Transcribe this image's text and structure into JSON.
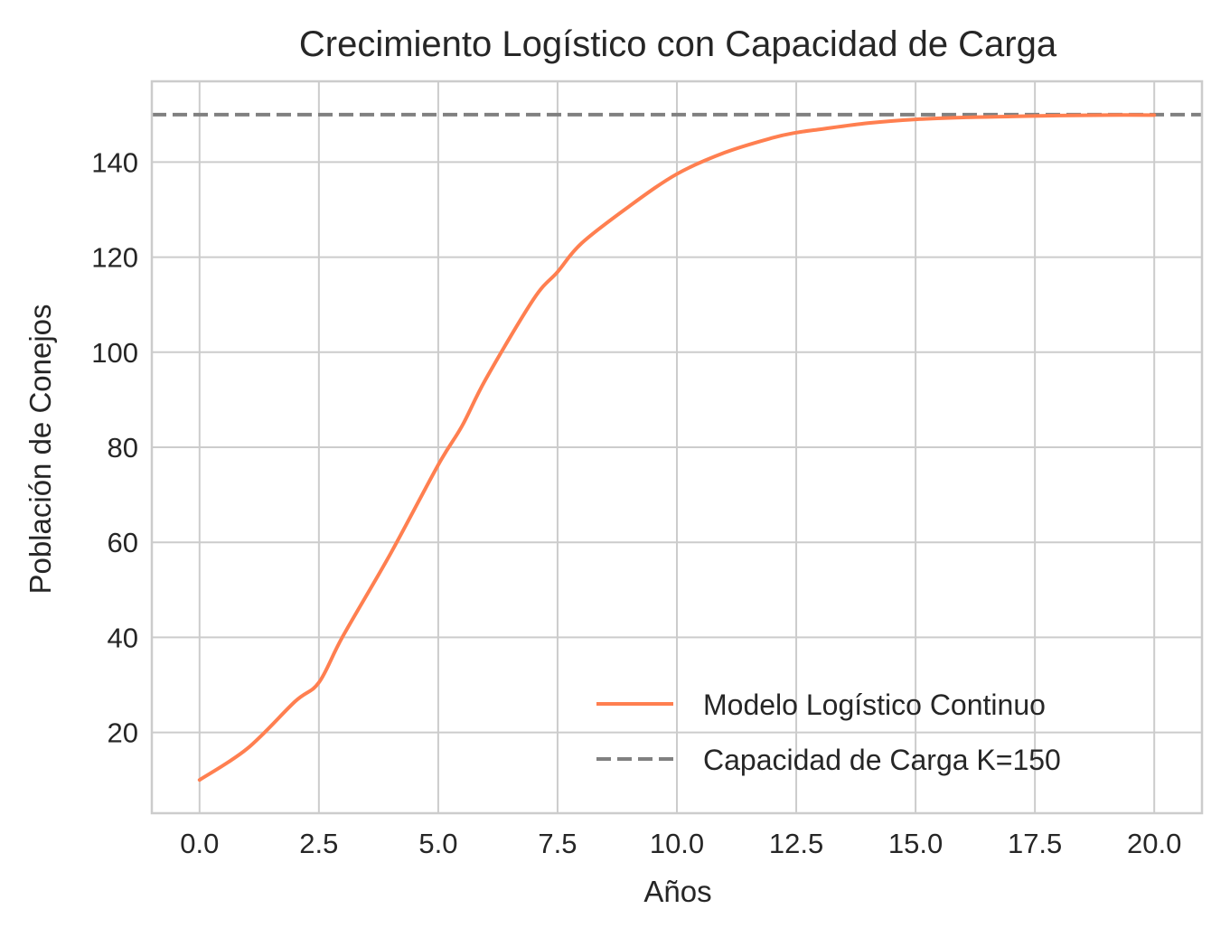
{
  "chart_data": {
    "type": "line",
    "title": "Crecimiento Logístico con Capacidad de Carga",
    "xlabel": "Años",
    "ylabel": "Población de Conejos",
    "xlim": [
      -1.0,
      21.0
    ],
    "ylim": [
      3.0,
      157.0
    ],
    "x_ticks": [
      0.0,
      2.5,
      5.0,
      7.5,
      10.0,
      12.5,
      15.0,
      17.5,
      20.0
    ],
    "x_tick_labels": [
      "0.0",
      "2.5",
      "5.0",
      "7.5",
      "10.0",
      "12.5",
      "15.0",
      "17.5",
      "20.0"
    ],
    "y_ticks": [
      20,
      40,
      60,
      80,
      100,
      120,
      140
    ],
    "y_tick_labels": [
      "20",
      "40",
      "60",
      "80",
      "100",
      "120",
      "140"
    ],
    "grid": true,
    "legend_position": "lower-right",
    "series": [
      {
        "name": "Modelo Logístico Continuo",
        "color": "#ff7f50",
        "style": "solid",
        "x": [
          0,
          1,
          2,
          2.5,
          3,
          4,
          5,
          5.5,
          6,
          7,
          7.5,
          8,
          9,
          10,
          11,
          12,
          12.5,
          13,
          14,
          15,
          16,
          17,
          18,
          19,
          20
        ],
        "y": [
          10,
          16.6,
          26.5,
          30.5,
          40.2,
          57.6,
          76.3,
          84.5,
          94.4,
          111.2,
          116.9,
          122.9,
          130.7,
          137.5,
          142.0,
          145.1,
          146.2,
          146.9,
          148.2,
          149.0,
          149.4,
          149.6,
          149.8,
          149.9,
          149.9
        ]
      },
      {
        "name": "Capacidad de Carga K=150",
        "color": "#808080",
        "style": "dashed",
        "x": [
          -1.0,
          21.0
        ],
        "y": [
          150,
          150
        ]
      }
    ]
  }
}
